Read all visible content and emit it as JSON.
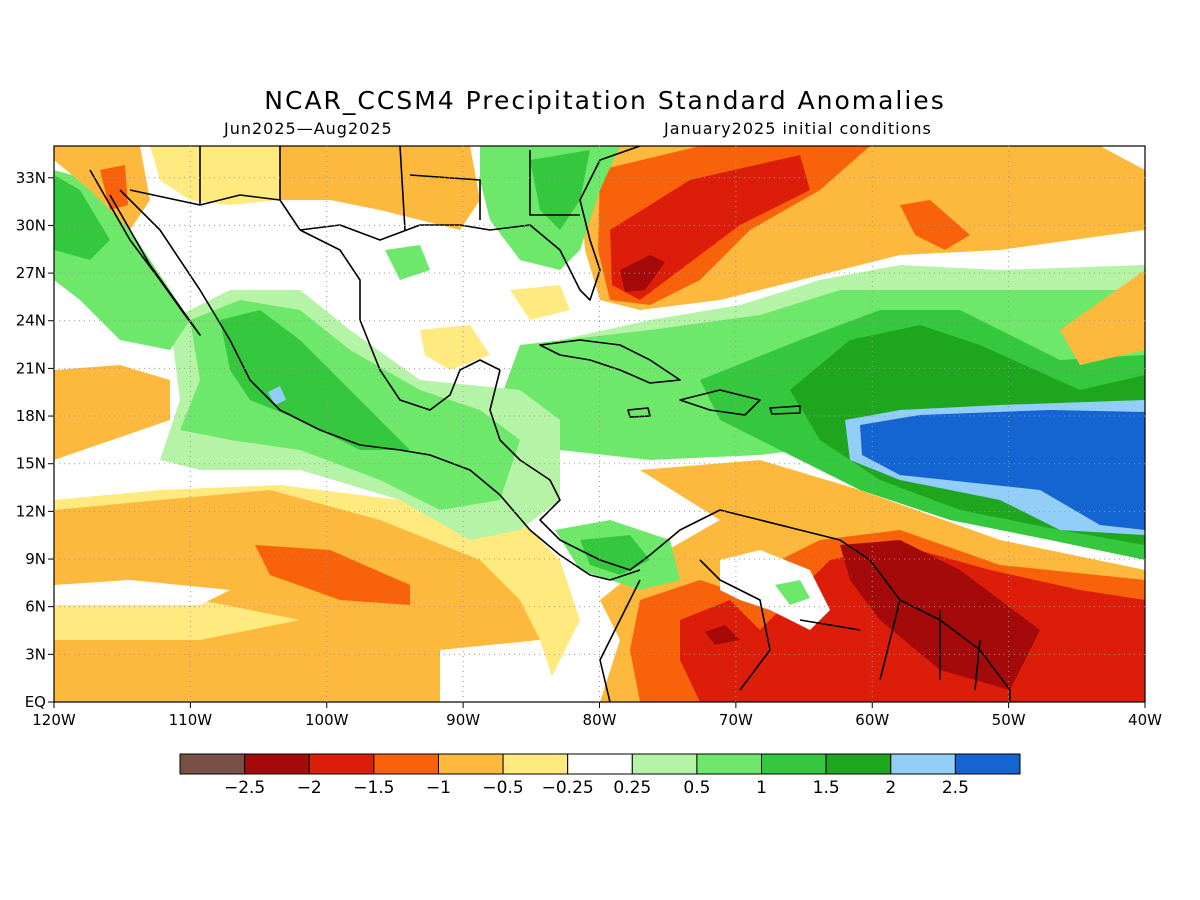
{
  "title": "NCAR_CCSM4 Precipitation Standard Anomalies",
  "period": "Jun2025—Aug2025",
  "initial_conditions": "January2025 initial conditions",
  "axes": {
    "lon_labels": [
      "120W",
      "110W",
      "100W",
      "90W",
      "80W",
      "70W",
      "60W",
      "50W",
      "40W"
    ],
    "lat_labels": [
      "EQ",
      "3N",
      "6N",
      "9N",
      "12N",
      "15N",
      "18N",
      "21N",
      "24N",
      "27N",
      "30N",
      "33N"
    ],
    "lon_range": [
      -120,
      -40
    ],
    "lat_range": [
      0,
      35
    ],
    "grid": "dotted"
  },
  "colorbar": {
    "colors": [
      "#7a4f46",
      "#a50a0a",
      "#dc1d0a",
      "#f8620b",
      "#fdb93e",
      "#feea7e",
      "#ffffff",
      "#b5f4a6",
      "#6ee86b",
      "#35c83f",
      "#1ea71e",
      "#92cef8",
      "#1464d2"
    ],
    "labels": [
      "−2.5",
      "−2",
      "−1.5",
      "−1",
      "−0.5",
      "−0.25",
      "0.25",
      "0.5",
      "1",
      "1.5",
      "2",
      "2.5"
    ]
  }
}
